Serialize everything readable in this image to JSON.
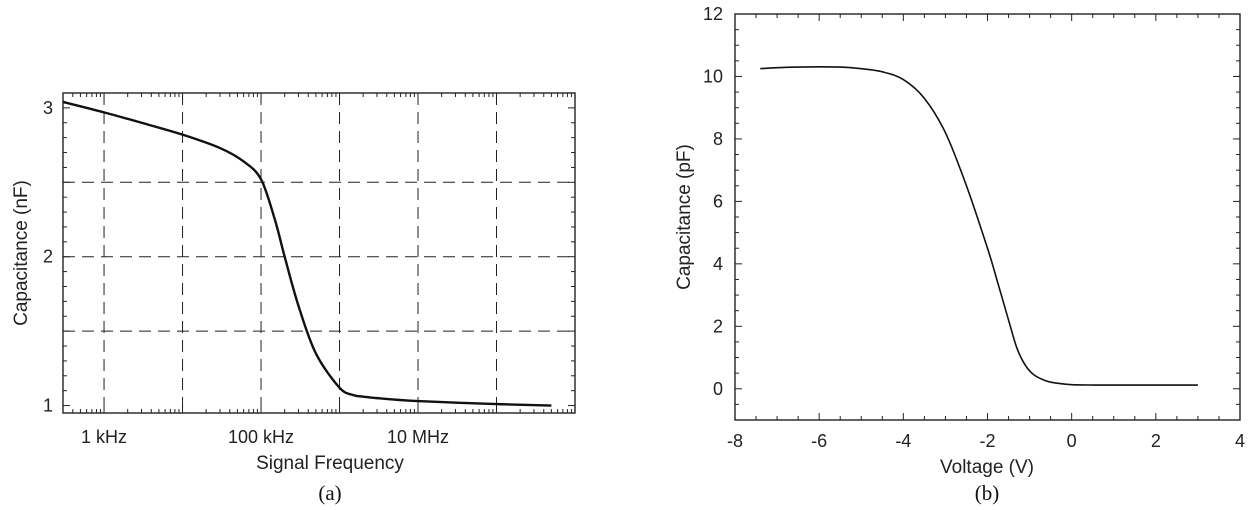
{
  "chart_data": [
    {
      "type": "line",
      "panel_label": "(a)",
      "xlabel": "Signal Frequency",
      "ylabel": "Capacitance (nF)",
      "x_scale": "log",
      "xlim": [
        300,
        1000000000
      ],
      "ylim": [
        0.95,
        3.1
      ],
      "x_ticks": [
        {
          "value": 1000,
          "label": "1 kHz"
        },
        {
          "value": 100000,
          "label": "100 kHz"
        },
        {
          "value": 10000000,
          "label": "10 MHz"
        }
      ],
      "y_ticks": [
        {
          "value": 1,
          "label": "1"
        },
        {
          "value": 2,
          "label": "2"
        },
        {
          "value": 3,
          "label": "3"
        }
      ],
      "grid": true,
      "grid_style": "dashed",
      "series": [
        {
          "x": [
            300,
            1000,
            3000,
            10000,
            30000,
            60000,
            100000,
            150000,
            200000,
            300000,
            500000,
            1000000,
            1500000,
            2000000,
            3000000,
            10000000,
            100000000,
            500000000
          ],
          "y": [
            3.04,
            2.97,
            2.9,
            2.82,
            2.73,
            2.64,
            2.52,
            2.25,
            2.0,
            1.67,
            1.35,
            1.12,
            1.07,
            1.06,
            1.05,
            1.03,
            1.01,
            1.0
          ]
        }
      ]
    },
    {
      "type": "line",
      "panel_label": "(b)",
      "xlabel": "Voltage (V)",
      "ylabel": "Capacitance (pF)",
      "xlim": [
        -8,
        4
      ],
      "ylim": [
        -1,
        12
      ],
      "x_ticks": [
        -8,
        -6,
        -4,
        -2,
        0,
        2,
        4
      ],
      "y_ticks": [
        0,
        2,
        4,
        6,
        8,
        10,
        12
      ],
      "grid": false,
      "series": [
        {
          "x": [
            -7.4,
            -7.0,
            -6.5,
            -6.0,
            -5.5,
            -5.0,
            -4.5,
            -4.0,
            -3.5,
            -3.0,
            -2.5,
            -2.0,
            -1.8,
            -1.5,
            -1.3,
            -1.1,
            -0.9,
            -0.6,
            -0.3,
            0.0,
            0.5,
            1.0,
            2.0,
            3.0
          ],
          "y": [
            10.25,
            10.28,
            10.3,
            10.31,
            10.3,
            10.25,
            10.15,
            9.9,
            9.3,
            8.2,
            6.5,
            4.5,
            3.6,
            2.2,
            1.3,
            0.75,
            0.45,
            0.25,
            0.17,
            0.13,
            0.12,
            0.12,
            0.12,
            0.12
          ]
        }
      ]
    }
  ]
}
